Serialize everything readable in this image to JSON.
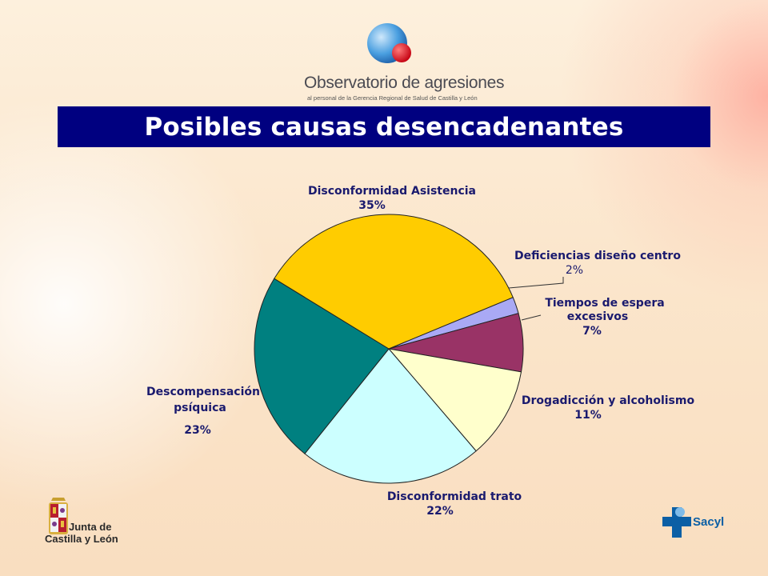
{
  "header": {
    "logo_title": "Observatorio de agresiones",
    "logo_subtitle": "al personal de la Gerencia Regional de Salud de Castilla y León",
    "title": "Posibles causas desencadenantes"
  },
  "footer": {
    "left_logo_line1": "Junta de",
    "left_logo_line2": "Castilla y León",
    "right_logo": "Sacyl"
  },
  "colors": {
    "title_bar": "#000080",
    "label_text": "#1a1a6e"
  },
  "chart_data": {
    "type": "pie",
    "title": "Posibles causas desencadenantes",
    "slices": [
      {
        "label": "Deficiencias diseño centro",
        "value": 2,
        "display": "2%",
        "color": "#a9a9f5"
      },
      {
        "label": "Tiempos de espera excesivos",
        "value": 7,
        "display": "7%",
        "color": "#993366"
      },
      {
        "label": "Drogadicción y alcoholismo",
        "value": 11,
        "display": "11%",
        "color": "#ffffcc"
      },
      {
        "label": "Disconformidad trato",
        "value": 22,
        "display": "22%",
        "color": "#ccffff"
      },
      {
        "label": "Descompensación psíquica",
        "value": 23,
        "display": "23%",
        "color": "#008080"
      },
      {
        "label": "Disconformidad Asistencia",
        "value": 35,
        "display": "35%",
        "color": "#ffcc00"
      }
    ]
  }
}
